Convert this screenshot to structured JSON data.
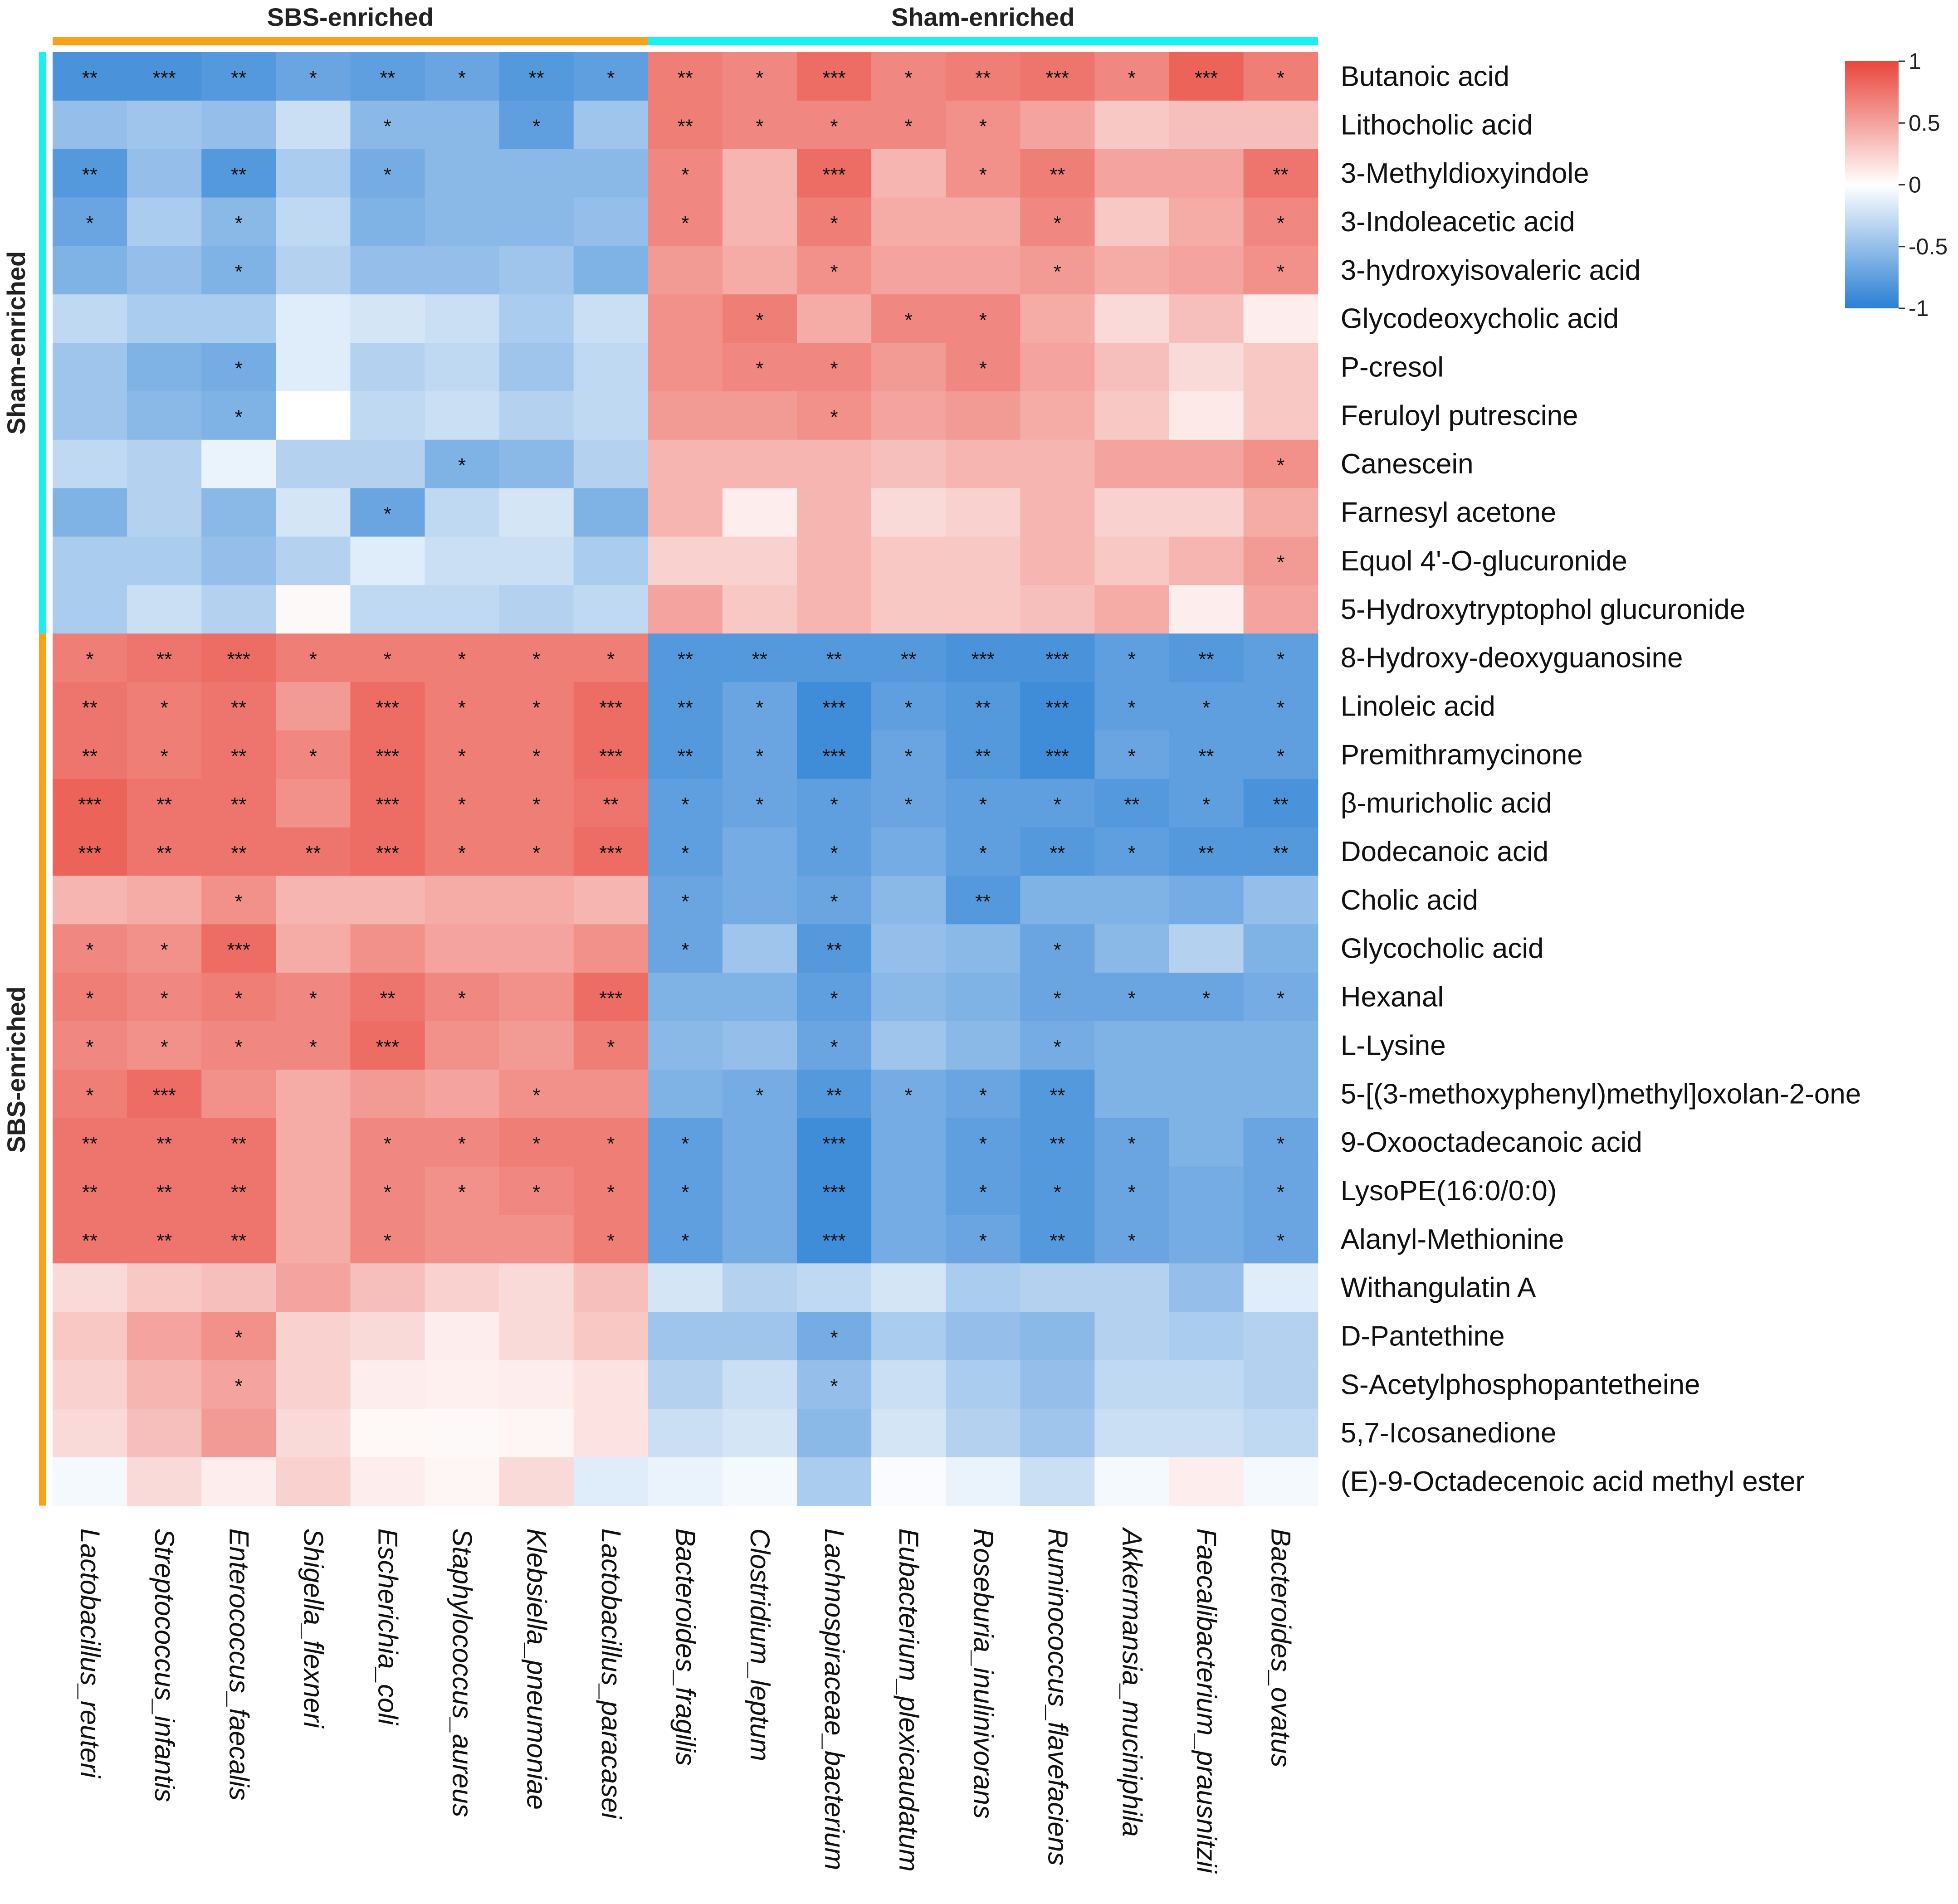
{
  "chart_data": {
    "type": "heatmap",
    "title": "",
    "top_groups": [
      {
        "label": "SBS-enriched",
        "color": "#F7A21B",
        "count": 8
      },
      {
        "label": "Sham-enriched",
        "color": "#19F0F0",
        "count": 9
      }
    ],
    "side_groups": [
      {
        "label": "Sham-enriched",
        "color": "#19F0F0",
        "count": 12
      },
      {
        "label": "SBS-enriched",
        "color": "#F7A21B",
        "count": 18
      }
    ],
    "rows": [
      "Butanoic acid",
      "Lithocholic acid",
      "3-Methyldioxyindole",
      "3-Indoleacetic acid",
      "3-hydroxyisovaleric acid",
      "Glycodeoxycholic acid",
      "P-cresol",
      "Feruloyl putrescine",
      "Canescein",
      "Farnesyl acetone",
      "Equol 4'-O-glucuronide",
      "5-Hydroxytryptophol glucuronide",
      "8-Hydroxy-deoxyguanosine",
      "Linoleic acid",
      "Premithramycinone",
      "β-muricholic acid",
      "Dodecanoic acid",
      "Cholic acid",
      "Glycocholic acid",
      "Hexanal",
      "L-Lysine",
      "5-[(3-methoxyphenyl)methyl]oxolan-2-one",
      "9-Oxooctadecanoic acid",
      "LysoPE(16:0/0:0)",
      "Alanyl-Methionine",
      "Withangulatin A",
      "D-Pantethine",
      "S-Acetylphosphopantetheine",
      "5,7-Icosanedione",
      "(E)-9-Octadecenoic acid methyl ester"
    ],
    "columns": [
      "Lactobacillus_reuteri",
      "Streptococcus_infantis",
      "Enterococcus_faecalis",
      "Shigella_flexneri",
      "Escherichia_coli",
      "Staphylococcus_aureus",
      "Klebsiella_pneumoniae",
      "Lactobacillus_paracasei",
      "Bacteroides_fragilis",
      "Clostridium_leptum",
      "Lachnospiraceae_bacterium",
      "Eubacterium_plexicaudatum",
      "Roseburia_inulinivorans",
      "Ruminococcus_flavefaciens",
      "Akkermansia_muciniphila",
      "Faecalibacterium_prausnitzii",
      "Bacteroides_ovatus"
    ],
    "values": [
      [
        -0.85,
        -0.85,
        -0.8,
        -0.7,
        -0.75,
        -0.7,
        -0.8,
        -0.75,
        0.7,
        0.65,
        0.8,
        0.65,
        0.7,
        0.75,
        0.65,
        0.85,
        0.7
      ],
      [
        -0.5,
        -0.45,
        -0.5,
        -0.25,
        -0.55,
        -0.55,
        -0.75,
        -0.45,
        0.7,
        0.65,
        0.65,
        0.65,
        0.6,
        0.5,
        0.3,
        0.35,
        0.35
      ],
      [
        -0.8,
        -0.5,
        -0.8,
        -0.4,
        -0.65,
        -0.55,
        -0.55,
        -0.55,
        0.65,
        0.4,
        0.8,
        0.4,
        0.6,
        0.7,
        0.5,
        0.5,
        0.75
      ],
      [
        -0.7,
        -0.4,
        -0.55,
        -0.3,
        -0.6,
        -0.55,
        -0.55,
        -0.5,
        0.65,
        0.4,
        0.7,
        0.45,
        0.45,
        0.65,
        0.3,
        0.45,
        0.65
      ],
      [
        -0.6,
        -0.5,
        -0.6,
        -0.35,
        -0.5,
        -0.5,
        -0.45,
        -0.6,
        0.55,
        0.45,
        0.6,
        0.5,
        0.5,
        0.55,
        0.45,
        0.5,
        0.6
      ],
      [
        -0.3,
        -0.4,
        -0.4,
        -0.15,
        -0.2,
        -0.25,
        -0.4,
        -0.25,
        0.6,
        0.7,
        0.45,
        0.65,
        0.65,
        0.45,
        0.2,
        0.35,
        0.1
      ],
      [
        -0.45,
        -0.6,
        -0.65,
        -0.15,
        -0.35,
        -0.3,
        -0.45,
        -0.3,
        0.6,
        0.65,
        0.65,
        0.55,
        0.65,
        0.5,
        0.35,
        0.2,
        0.3
      ],
      [
        -0.45,
        -0.55,
        -0.6,
        0.0,
        -0.3,
        -0.25,
        -0.35,
        -0.3,
        0.55,
        0.55,
        0.6,
        0.5,
        0.55,
        0.45,
        0.3,
        0.12,
        0.3
      ],
      [
        -0.3,
        -0.35,
        -0.1,
        -0.35,
        -0.35,
        -0.6,
        -0.55,
        -0.35,
        0.4,
        0.4,
        0.4,
        0.35,
        0.4,
        0.4,
        0.5,
        0.5,
        0.6
      ],
      [
        -0.6,
        -0.35,
        -0.55,
        -0.2,
        -0.7,
        -0.3,
        -0.2,
        -0.6,
        0.4,
        0.1,
        0.4,
        0.2,
        0.25,
        0.4,
        0.25,
        0.25,
        0.45
      ],
      [
        -0.4,
        -0.4,
        -0.5,
        -0.35,
        -0.15,
        -0.25,
        -0.25,
        -0.4,
        0.25,
        0.25,
        0.4,
        0.3,
        0.3,
        0.4,
        0.3,
        0.4,
        0.55
      ],
      [
        -0.4,
        -0.25,
        -0.35,
        0.03,
        -0.3,
        -0.3,
        -0.35,
        -0.3,
        0.5,
        0.3,
        0.4,
        0.3,
        0.3,
        0.35,
        0.45,
        0.1,
        0.5
      ],
      [
        0.7,
        0.75,
        0.8,
        0.7,
        0.7,
        0.7,
        0.7,
        0.7,
        -0.8,
        -0.8,
        -0.8,
        -0.8,
        -0.85,
        -0.85,
        -0.75,
        -0.8,
        -0.75
      ],
      [
        0.75,
        0.7,
        0.75,
        0.55,
        0.8,
        0.7,
        0.7,
        0.8,
        -0.8,
        -0.7,
        -0.9,
        -0.75,
        -0.8,
        -0.9,
        -0.75,
        -0.75,
        -0.75
      ],
      [
        0.75,
        0.7,
        0.75,
        0.65,
        0.8,
        0.7,
        0.7,
        0.8,
        -0.8,
        -0.7,
        -0.9,
        -0.7,
        -0.8,
        -0.9,
        -0.7,
        -0.75,
        -0.75
      ],
      [
        0.85,
        0.75,
        0.75,
        0.6,
        0.8,
        0.7,
        0.7,
        0.75,
        -0.75,
        -0.7,
        -0.75,
        -0.7,
        -0.75,
        -0.75,
        -0.8,
        -0.75,
        -0.85
      ],
      [
        0.85,
        0.75,
        0.75,
        0.75,
        0.8,
        0.7,
        0.7,
        0.8,
        -0.75,
        -0.65,
        -0.75,
        -0.65,
        -0.75,
        -0.8,
        -0.75,
        -0.8,
        -0.8
      ],
      [
        0.4,
        0.45,
        0.6,
        0.4,
        0.4,
        0.45,
        0.45,
        0.4,
        -0.7,
        -0.65,
        -0.7,
        -0.55,
        -0.8,
        -0.6,
        -0.6,
        -0.65,
        -0.5
      ],
      [
        0.65,
        0.6,
        0.8,
        0.45,
        0.6,
        0.5,
        0.5,
        0.6,
        -0.7,
        -0.45,
        -0.8,
        -0.5,
        -0.55,
        -0.7,
        -0.55,
        -0.35,
        -0.6
      ],
      [
        0.7,
        0.65,
        0.7,
        0.65,
        0.75,
        0.65,
        0.6,
        0.8,
        -0.6,
        -0.6,
        -0.75,
        -0.55,
        -0.6,
        -0.7,
        -0.7,
        -0.7,
        -0.65
      ],
      [
        0.65,
        0.6,
        0.65,
        0.65,
        0.8,
        0.6,
        0.55,
        0.7,
        -0.55,
        -0.5,
        -0.7,
        -0.45,
        -0.55,
        -0.65,
        -0.6,
        -0.6,
        -0.6
      ],
      [
        0.7,
        0.8,
        0.6,
        0.45,
        0.55,
        0.5,
        0.6,
        0.6,
        -0.6,
        -0.65,
        -0.8,
        -0.65,
        -0.7,
        -0.8,
        -0.6,
        -0.6,
        -0.6
      ],
      [
        0.75,
        0.75,
        0.75,
        0.45,
        0.65,
        0.65,
        0.7,
        0.7,
        -0.75,
        -0.65,
        -0.9,
        -0.65,
        -0.75,
        -0.8,
        -0.7,
        -0.6,
        -0.7
      ],
      [
        0.75,
        0.75,
        0.75,
        0.45,
        0.65,
        0.6,
        0.65,
        0.7,
        -0.75,
        -0.65,
        -0.9,
        -0.65,
        -0.75,
        -0.8,
        -0.7,
        -0.65,
        -0.7
      ],
      [
        0.75,
        0.75,
        0.75,
        0.45,
        0.65,
        0.6,
        0.6,
        0.7,
        -0.75,
        -0.65,
        -0.9,
        -0.65,
        -0.7,
        -0.8,
        -0.7,
        -0.65,
        -0.7
      ],
      [
        0.2,
        0.3,
        0.35,
        0.5,
        0.35,
        0.25,
        0.2,
        0.35,
        -0.2,
        -0.35,
        -0.3,
        -0.2,
        -0.4,
        -0.35,
        -0.35,
        -0.5,
        -0.15
      ],
      [
        0.3,
        0.5,
        0.6,
        0.25,
        0.2,
        0.1,
        0.2,
        0.3,
        -0.45,
        -0.45,
        -0.65,
        -0.4,
        -0.5,
        -0.55,
        -0.35,
        -0.4,
        -0.35
      ],
      [
        0.25,
        0.4,
        0.5,
        0.25,
        0.1,
        0.08,
        0.1,
        0.15,
        -0.35,
        -0.25,
        -0.5,
        -0.25,
        -0.4,
        -0.5,
        -0.3,
        -0.3,
        -0.35
      ],
      [
        0.2,
        0.35,
        0.55,
        0.2,
        0.04,
        0.03,
        0.05,
        0.15,
        -0.25,
        -0.2,
        -0.55,
        -0.2,
        -0.35,
        -0.45,
        -0.25,
        -0.25,
        -0.3
      ],
      [
        -0.05,
        0.2,
        0.1,
        0.25,
        0.1,
        0.05,
        0.2,
        -0.15,
        -0.1,
        -0.05,
        -0.4,
        -0.03,
        -0.1,
        -0.25,
        -0.05,
        0.1,
        -0.05
      ]
    ],
    "significance": [
      [
        "**",
        "***",
        "**",
        "*",
        "**",
        "*",
        "**",
        "*",
        "**",
        "*",
        "***",
        "*",
        "**",
        "***",
        "*",
        "***",
        "*"
      ],
      [
        "",
        "",
        "",
        "",
        "*",
        "",
        "*",
        "",
        "**",
        "*",
        "*",
        "*",
        "*",
        "",
        "",
        "",
        ""
      ],
      [
        "**",
        "",
        "**",
        "",
        "*",
        "",
        "",
        "",
        "*",
        "",
        "***",
        "",
        "*",
        "**",
        "",
        "",
        "**"
      ],
      [
        "*",
        "",
        "*",
        "",
        "",
        "",
        "",
        "",
        "*",
        "",
        "*",
        "",
        "",
        "*",
        "",
        "",
        "*"
      ],
      [
        "",
        "",
        "*",
        "",
        "",
        "",
        "",
        "",
        "",
        "",
        "*",
        "",
        "",
        "*",
        "",
        "",
        "*"
      ],
      [
        "",
        "",
        "",
        "",
        "",
        "",
        "",
        "",
        "",
        "*",
        "",
        "*",
        "*",
        "",
        "",
        "",
        ""
      ],
      [
        "",
        "",
        "*",
        "",
        "",
        "",
        "",
        "",
        "",
        "*",
        "*",
        "",
        "*",
        "",
        "",
        "",
        ""
      ],
      [
        "",
        "",
        "*",
        "",
        "",
        "",
        "",
        "",
        "",
        "",
        "*",
        "",
        "",
        "",
        "",
        "",
        ""
      ],
      [
        "",
        "",
        "",
        "",
        "",
        "*",
        "",
        "",
        "",
        "",
        "",
        "",
        "",
        "",
        "",
        "",
        "*"
      ],
      [
        "",
        "",
        "",
        "",
        "*",
        "",
        "",
        "",
        "",
        "",
        "",
        "",
        "",
        "",
        "",
        "",
        ""
      ],
      [
        "",
        "",
        "",
        "",
        "",
        "",
        "",
        "",
        "",
        "",
        "",
        "",
        "",
        "",
        "",
        "",
        "*"
      ],
      [
        "",
        "",
        "",
        "",
        "",
        "",
        "",
        "",
        "",
        "",
        "",
        "",
        "",
        "",
        "",
        "",
        ""
      ],
      [
        "*",
        "**",
        "***",
        "*",
        "*",
        "*",
        "*",
        "*",
        "**",
        "**",
        "**",
        "**",
        "***",
        "***",
        "*",
        "**",
        "*"
      ],
      [
        "**",
        "*",
        "**",
        "",
        "***",
        "*",
        "*",
        "***",
        "**",
        "*",
        "***",
        "*",
        "**",
        "***",
        "*",
        "*",
        "*"
      ],
      [
        "**",
        "*",
        "**",
        "*",
        "***",
        "*",
        "*",
        "***",
        "**",
        "*",
        "***",
        "*",
        "**",
        "***",
        "*",
        "**",
        "*"
      ],
      [
        "***",
        "**",
        "**",
        "",
        "***",
        "*",
        "*",
        "**",
        "*",
        "*",
        "*",
        "*",
        "*",
        "*",
        "**",
        "*",
        "**"
      ],
      [
        "***",
        "**",
        "**",
        "**",
        "***",
        "*",
        "*",
        "***",
        "*",
        "",
        "*",
        "",
        "*",
        "**",
        "*",
        "**",
        "**"
      ],
      [
        "",
        "",
        "*",
        "",
        "",
        "",
        "",
        "",
        "*",
        "",
        "*",
        "",
        "**",
        "",
        "",
        "",
        ""
      ],
      [
        "*",
        "*",
        "***",
        "",
        "",
        "",
        "",
        "",
        "*",
        "",
        "**",
        "",
        "",
        "*",
        "",
        "",
        ""
      ],
      [
        "*",
        "*",
        "*",
        "*",
        "**",
        "*",
        "",
        "***",
        "",
        "",
        "*",
        "",
        "",
        "*",
        "*",
        "*",
        "*"
      ],
      [
        "*",
        "*",
        "*",
        "*",
        "***",
        "",
        "",
        "*",
        "",
        "",
        "*",
        "",
        "",
        "*",
        "",
        "",
        ""
      ],
      [
        "*",
        "***",
        "",
        "",
        "",
        "",
        "*",
        "",
        "",
        "*",
        "**",
        "*",
        "*",
        "**",
        "",
        "",
        ""
      ],
      [
        "**",
        "**",
        "**",
        "",
        "*",
        "*",
        "*",
        "*",
        "*",
        "",
        "***",
        "",
        "*",
        "**",
        "*",
        "",
        "*"
      ],
      [
        "**",
        "**",
        "**",
        "",
        "*",
        "*",
        "*",
        "*",
        "*",
        "",
        "***",
        "",
        "*",
        "*",
        "*",
        "",
        "*"
      ],
      [
        "**",
        "**",
        "**",
        "",
        "*",
        "",
        "",
        "*",
        "*",
        "",
        "***",
        "",
        "*",
        "**",
        "*",
        "",
        "*"
      ],
      [
        "",
        "",
        "",
        "",
        "",
        "",
        "",
        "",
        "",
        "",
        "",
        "",
        "",
        "",
        "",
        "",
        ""
      ],
      [
        "",
        "",
        "*",
        "",
        "",
        "",
        "",
        "",
        "",
        "",
        "*",
        "",
        "",
        "",
        "",
        "",
        ""
      ],
      [
        "",
        "",
        "*",
        "",
        "",
        "",
        "",
        "",
        "",
        "",
        "*",
        "",
        "",
        "",
        "",
        "",
        ""
      ],
      [
        "",
        "",
        "",
        "",
        "",
        "",
        "",
        "",
        "",
        "",
        "",
        "",
        "",
        "",
        "",
        "",
        ""
      ],
      [
        "",
        "",
        "",
        "",
        "",
        "",
        "",
        "",
        "",
        "",
        "",
        "",
        "",
        "",
        "",
        "",
        ""
      ]
    ],
    "color_scale": {
      "min": -1,
      "max": 1,
      "low_color": "#2A7FD4",
      "mid_color": "#FFFFFF",
      "high_color": "#E8473C",
      "ticks": [
        "1",
        "0.5",
        "0",
        "-0.5",
        "-1"
      ],
      "tick_values": [
        1,
        0.5,
        0,
        -0.5,
        -1
      ]
    }
  }
}
